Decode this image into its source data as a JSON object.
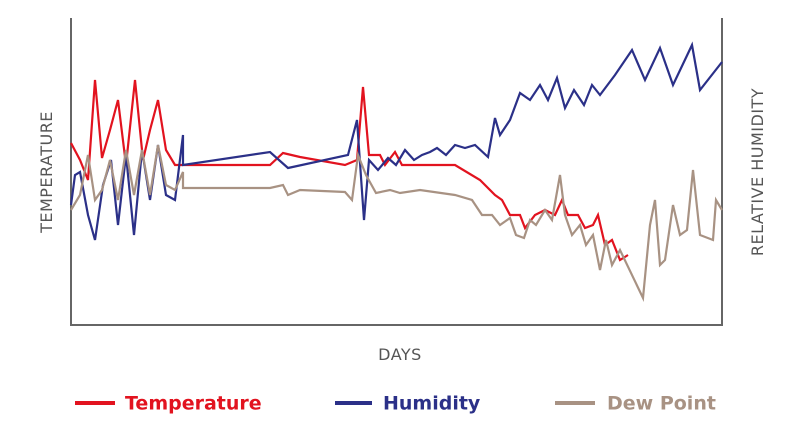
{
  "chart_data": {
    "type": "line",
    "xlabel": "DAYS",
    "ylabel": "TEMPERATURE",
    "y2label": "RELATIVE HUMIDITY",
    "xlim": [
      0,
      651
    ],
    "ylim": [
      0,
      307
    ],
    "y2lim": [
      0,
      307
    ],
    "series": [
      {
        "name": "Temperature",
        "color": "#e2131f",
        "x": [
          0,
          9,
          17,
          24,
          31,
          39,
          47,
          55,
          64,
          72,
          79,
          87,
          95,
          104,
          199,
          212,
          229,
          274,
          286,
          292,
          298,
          309,
          314,
          324,
          331,
          384,
          409,
          424,
          431,
          439,
          449,
          454,
          464,
          474,
          484,
          491,
          497,
          507,
          514,
          522,
          527,
          534,
          541,
          549,
          557
        ],
        "values": [
          182,
          165,
          145,
          245,
          167,
          195,
          225,
          160,
          245,
          165,
          195,
          225,
          175,
          160,
          160,
          172,
          168,
          160,
          165,
          238,
          170,
          170,
          160,
          173,
          160,
          160,
          145,
          130,
          125,
          110,
          110,
          97,
          110,
          115,
          110,
          125,
          110,
          110,
          97,
          100,
          110,
          80,
          85,
          65,
          70
        ]
      },
      {
        "name": "Humidity",
        "color": "#2b3088",
        "axis": "y2",
        "x": [
          0,
          4,
          9,
          17,
          24,
          32,
          40,
          47,
          55,
          63,
          71,
          79,
          87,
          95,
          104,
          112,
          112,
          199,
          217,
          277,
          286,
          293,
          298,
          307,
          317,
          325,
          334,
          343,
          351,
          359,
          366,
          375,
          384,
          394,
          404,
          417,
          424,
          429,
          439,
          449,
          459,
          469,
          477,
          486,
          494,
          503,
          513,
          521,
          529,
          544,
          561,
          574,
          589,
          602,
          621,
          629,
          651
        ],
        "values": [
          120,
          150,
          153,
          110,
          85,
          140,
          165,
          100,
          170,
          90,
          175,
          125,
          180,
          130,
          125,
          190,
          160,
          173,
          157,
          170,
          205,
          105,
          165,
          155,
          167,
          160,
          175,
          165,
          170,
          173,
          177,
          170,
          180,
          177,
          180,
          168,
          207,
          190,
          205,
          232,
          225,
          240,
          225,
          247,
          217,
          235,
          220,
          240,
          230,
          250,
          275,
          245,
          277,
          240,
          280,
          235,
          263
        ]
      },
      {
        "name": "Dew Point",
        "color": "#a89283",
        "x": [
          0,
          9,
          17,
          24,
          31,
          39,
          47,
          55,
          63,
          71,
          79,
          87,
          95,
          104,
          112,
          112,
          199,
          212,
          217,
          229,
          274,
          281,
          287,
          295,
          305,
          319,
          329,
          349,
          384,
          401,
          411,
          421,
          429,
          439,
          445,
          453,
          459,
          465,
          474,
          481,
          489,
          494,
          501,
          509,
          515,
          522,
          529,
          535,
          541,
          549,
          572,
          579,
          584,
          589,
          594,
          602,
          609,
          616,
          622,
          629,
          642,
          645,
          651
        ],
        "values": [
          115,
          130,
          170,
          125,
          135,
          165,
          125,
          175,
          130,
          175,
          130,
          180,
          140,
          135,
          153,
          137,
          137,
          140,
          130,
          135,
          133,
          125,
          170,
          150,
          132,
          135,
          132,
          135,
          130,
          125,
          110,
          110,
          100,
          107,
          90,
          87,
          105,
          100,
          115,
          105,
          150,
          110,
          90,
          100,
          80,
          90,
          55,
          85,
          60,
          75,
          27,
          100,
          125,
          60,
          65,
          120,
          90,
          95,
          155,
          90,
          85,
          125,
          115
        ]
      }
    ]
  }
}
